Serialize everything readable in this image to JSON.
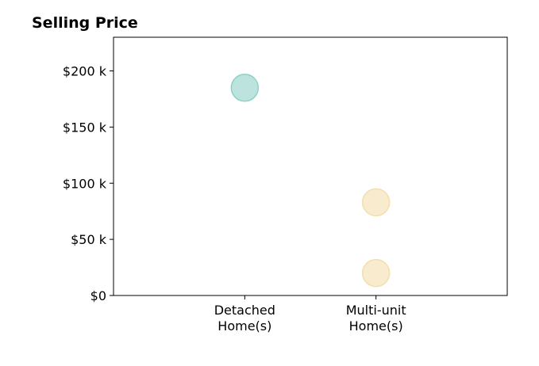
{
  "chart_data": {
    "type": "scatter",
    "title": "Selling Price",
    "xlabel": "",
    "ylabel": "",
    "categories": [
      "Detached\nHome(s)",
      "Multi-unit\nHome(s)"
    ],
    "x_range": [
      0,
      3
    ],
    "ylim": [
      0,
      230000
    ],
    "yticks": [
      0,
      50000,
      100000,
      150000,
      200000
    ],
    "ytick_labels": [
      "$0",
      "$50 k",
      "$100 k",
      "$150 k",
      "$200 k"
    ],
    "grid": false,
    "points": [
      {
        "category_index": 0,
        "x": 1,
        "y": 185000,
        "color": "#8FD0C7"
      },
      {
        "category_index": 1,
        "x": 2,
        "y": 83000,
        "color": "#F3DEAE"
      },
      {
        "category_index": 1,
        "x": 2,
        "y": 20000,
        "color": "#F3DEAE"
      }
    ]
  }
}
